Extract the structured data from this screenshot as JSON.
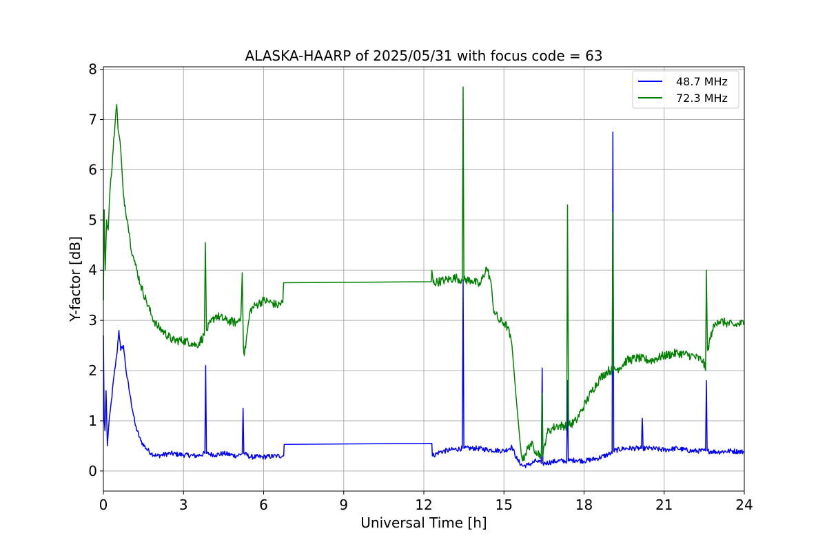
{
  "chart_data": {
    "type": "line",
    "title": "ALASKA-HAARP of 2025/05/31 with focus code = 63",
    "xlabel": "Universal Time [h]",
    "ylabel": "Y-factor [dB]",
    "xlim": [
      0,
      24
    ],
    "ylim": [
      -0.4,
      8.05
    ],
    "xticks": [
      0,
      3,
      6,
      9,
      12,
      15,
      18,
      21,
      24
    ],
    "yticks": [
      0,
      1,
      2,
      3,
      4,
      5,
      6,
      7,
      8
    ],
    "grid": true,
    "legend_position": "top-right",
    "series": [
      {
        "name": "48.7 MHz",
        "color": "#0000ff",
        "points": [
          [
            0.0,
            2.7
          ],
          [
            0.03,
            1.0
          ],
          [
            0.06,
            0.8
          ],
          [
            0.1,
            1.6
          ],
          [
            0.15,
            0.5
          ],
          [
            0.2,
            0.9
          ],
          [
            0.3,
            1.4
          ],
          [
            0.4,
            1.9
          ],
          [
            0.5,
            2.3
          ],
          [
            0.58,
            2.8
          ],
          [
            0.65,
            2.4
          ],
          [
            0.75,
            2.5
          ],
          [
            0.85,
            2.0
          ],
          [
            1.0,
            1.5
          ],
          [
            1.2,
            0.9
          ],
          [
            1.4,
            0.6
          ],
          [
            1.6,
            0.45
          ],
          [
            1.8,
            0.35
          ],
          [
            2.0,
            0.3
          ],
          [
            2.5,
            0.35
          ],
          [
            3.0,
            0.32
          ],
          [
            3.5,
            0.3
          ],
          [
            3.8,
            0.35
          ],
          [
            3.83,
            2.1
          ],
          [
            3.86,
            0.35
          ],
          [
            4.2,
            0.32
          ],
          [
            4.5,
            0.35
          ],
          [
            5.0,
            0.3
          ],
          [
            5.2,
            0.35
          ],
          [
            5.23,
            1.25
          ],
          [
            5.26,
            0.35
          ],
          [
            5.5,
            0.28
          ],
          [
            6.0,
            0.28
          ],
          [
            6.5,
            0.3
          ],
          [
            6.75,
            0.3
          ],
          [
            6.77,
            0.53
          ],
          [
            12.3,
            0.55
          ],
          [
            12.32,
            0.3
          ],
          [
            12.6,
            0.38
          ],
          [
            13.0,
            0.42
          ],
          [
            13.44,
            0.45
          ],
          [
            13.47,
            3.8
          ],
          [
            13.5,
            0.45
          ],
          [
            14.0,
            0.45
          ],
          [
            14.5,
            0.42
          ],
          [
            15.0,
            0.4
          ],
          [
            15.3,
            0.48
          ],
          [
            15.5,
            0.22
          ],
          [
            15.7,
            0.1
          ],
          [
            15.9,
            0.12
          ],
          [
            16.2,
            0.2
          ],
          [
            16.4,
            0.15
          ],
          [
            16.43,
            2.05
          ],
          [
            16.46,
            0.15
          ],
          [
            16.8,
            0.18
          ],
          [
            17.0,
            0.2
          ],
          [
            17.35,
            0.2
          ],
          [
            17.38,
            1.8
          ],
          [
            17.41,
            0.2
          ],
          [
            17.7,
            0.22
          ],
          [
            18.0,
            0.2
          ],
          [
            18.5,
            0.25
          ],
          [
            19.0,
            0.35
          ],
          [
            19.05,
            0.35
          ],
          [
            19.08,
            6.75
          ],
          [
            19.11,
            0.4
          ],
          [
            19.5,
            0.45
          ],
          [
            20.0,
            0.45
          ],
          [
            20.15,
            0.45
          ],
          [
            20.18,
            1.05
          ],
          [
            20.21,
            0.45
          ],
          [
            20.5,
            0.45
          ],
          [
            21.0,
            0.42
          ],
          [
            21.5,
            0.45
          ],
          [
            22.0,
            0.4
          ],
          [
            22.55,
            0.4
          ],
          [
            22.58,
            1.8
          ],
          [
            22.61,
            0.4
          ],
          [
            23.0,
            0.38
          ],
          [
            23.5,
            0.4
          ],
          [
            24.0,
            0.38
          ]
        ]
      },
      {
        "name": "72.3 MHz",
        "color": "#008000",
        "points": [
          [
            0.0,
            3.4
          ],
          [
            0.03,
            5.2
          ],
          [
            0.07,
            4.0
          ],
          [
            0.12,
            5.0
          ],
          [
            0.18,
            4.8
          ],
          [
            0.25,
            5.6
          ],
          [
            0.35,
            6.3
          ],
          [
            0.45,
            7.0
          ],
          [
            0.5,
            7.3
          ],
          [
            0.55,
            6.8
          ],
          [
            0.65,
            6.4
          ],
          [
            0.75,
            5.5
          ],
          [
            0.9,
            5.0
          ],
          [
            1.0,
            4.6
          ],
          [
            1.1,
            4.3
          ],
          [
            1.2,
            4.1
          ],
          [
            1.4,
            3.7
          ],
          [
            1.6,
            3.4
          ],
          [
            1.8,
            3.1
          ],
          [
            2.0,
            2.9
          ],
          [
            2.3,
            2.75
          ],
          [
            2.6,
            2.6
          ],
          [
            3.0,
            2.6
          ],
          [
            3.3,
            2.55
          ],
          [
            3.5,
            2.5
          ],
          [
            3.78,
            2.7
          ],
          [
            3.82,
            4.55
          ],
          [
            3.86,
            2.8
          ],
          [
            4.2,
            3.1
          ],
          [
            4.6,
            3.0
          ],
          [
            5.0,
            2.95
          ],
          [
            5.15,
            3.1
          ],
          [
            5.2,
            3.95
          ],
          [
            5.24,
            2.5
          ],
          [
            5.28,
            2.3
          ],
          [
            5.35,
            2.6
          ],
          [
            5.5,
            3.2
          ],
          [
            5.7,
            3.3
          ],
          [
            6.0,
            3.4
          ],
          [
            6.3,
            3.35
          ],
          [
            6.5,
            3.3
          ],
          [
            6.72,
            3.35
          ],
          [
            6.75,
            3.75
          ],
          [
            12.28,
            3.77
          ],
          [
            12.3,
            4.0
          ],
          [
            12.35,
            3.75
          ],
          [
            12.8,
            3.8
          ],
          [
            13.2,
            3.85
          ],
          [
            13.44,
            3.8
          ],
          [
            13.47,
            7.65
          ],
          [
            13.5,
            3.8
          ],
          [
            13.8,
            3.8
          ],
          [
            14.1,
            3.7
          ],
          [
            14.35,
            4.05
          ],
          [
            14.5,
            3.8
          ],
          [
            14.6,
            3.25
          ],
          [
            14.8,
            3.0
          ],
          [
            15.0,
            2.95
          ],
          [
            15.15,
            2.85
          ],
          [
            15.3,
            2.5
          ],
          [
            15.45,
            1.5
          ],
          [
            15.6,
            0.6
          ],
          [
            15.7,
            0.2
          ],
          [
            15.8,
            0.35
          ],
          [
            16.0,
            0.55
          ],
          [
            16.2,
            0.4
          ],
          [
            16.4,
            0.3
          ],
          [
            16.43,
            1.55
          ],
          [
            16.46,
            0.3
          ],
          [
            16.6,
            0.75
          ],
          [
            16.8,
            0.85
          ],
          [
            17.0,
            0.9
          ],
          [
            17.35,
            0.9
          ],
          [
            17.38,
            5.3
          ],
          [
            17.42,
            0.9
          ],
          [
            17.7,
            1.0
          ],
          [
            17.9,
            1.2
          ],
          [
            18.1,
            1.4
          ],
          [
            18.3,
            1.6
          ],
          [
            18.6,
            1.85
          ],
          [
            18.9,
            2.0
          ],
          [
            19.05,
            2.0
          ],
          [
            19.08,
            5.15
          ],
          [
            19.11,
            2.0
          ],
          [
            19.3,
            2.05
          ],
          [
            19.6,
            2.2
          ],
          [
            20.0,
            2.25
          ],
          [
            20.5,
            2.2
          ],
          [
            21.0,
            2.3
          ],
          [
            21.5,
            2.35
          ],
          [
            22.0,
            2.3
          ],
          [
            22.45,
            2.2
          ],
          [
            22.55,
            2.0
          ],
          [
            22.58,
            4.0
          ],
          [
            22.62,
            2.4
          ],
          [
            22.8,
            2.8
          ],
          [
            23.0,
            3.0
          ],
          [
            23.3,
            2.95
          ],
          [
            23.6,
            2.9
          ],
          [
            24.0,
            2.95
          ]
        ]
      }
    ]
  }
}
